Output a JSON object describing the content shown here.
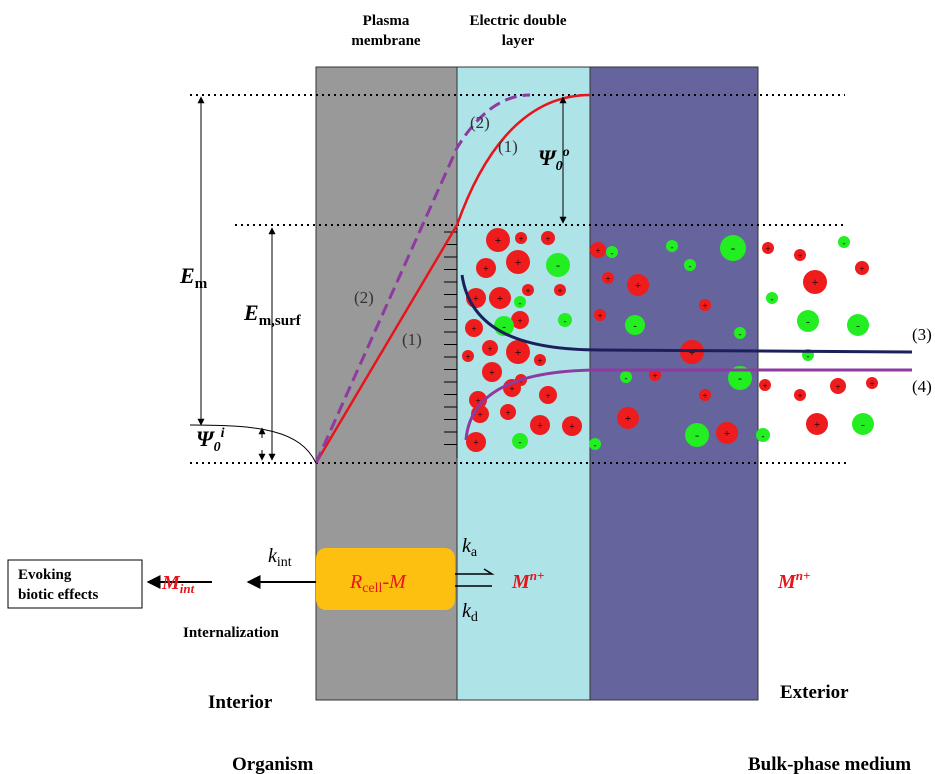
{
  "header": {
    "membrane": [
      "Plasma",
      "membrane"
    ],
    "double_layer": [
      "Electric double",
      "layer"
    ]
  },
  "potential": {
    "curve1": "(1)",
    "curve2": "(2)",
    "psi_o": {
      "main": "Ψ",
      "sub": "0",
      "sup": "o"
    },
    "psi_i": {
      "main": "Ψ",
      "sub": "0",
      "sup": "i"
    },
    "em": {
      "main": "E",
      "sub": "m"
    },
    "em_surf": {
      "main": "E",
      "sub": "m,surf"
    }
  },
  "profiles": {
    "curve3": "(3)",
    "curve4": "(4)"
  },
  "charges": {
    "cation": "+",
    "anion": "-"
  },
  "reactions": {
    "effect": [
      "Evoking",
      "biotic effects"
    ],
    "m_int": {
      "main": "M",
      "sub": "int"
    },
    "k_int": {
      "main": "k",
      "sub": "int"
    },
    "complex": {
      "a": "R",
      "a_sub": "cell",
      "b": "-M"
    },
    "k_a": {
      "main": "k",
      "sub": "a"
    },
    "k_d": {
      "main": "k",
      "sub": "d"
    },
    "m_ion": {
      "main": "M",
      "sup": "n+"
    },
    "internalization": "Internalization"
  },
  "regions": {
    "interior": "Interior",
    "exterior": "Exterior",
    "organism": "Organism",
    "bulk": "Bulk-phase medium"
  }
}
